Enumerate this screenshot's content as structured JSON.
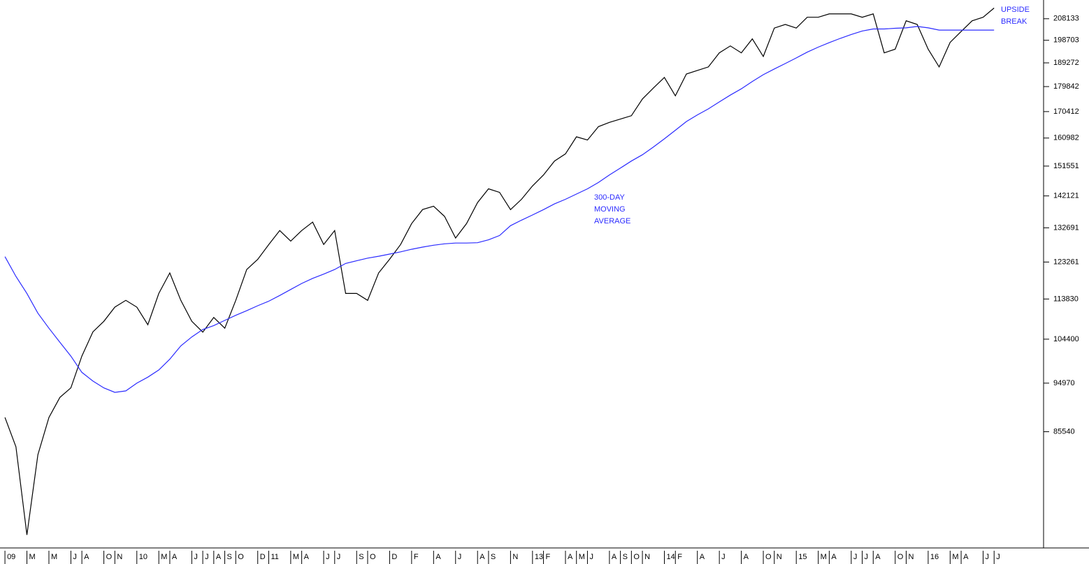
{
  "chart_data": {
    "type": "line",
    "log_scale": true,
    "x": [
      0,
      1,
      2,
      3,
      4,
      5,
      6,
      7,
      8,
      9,
      10,
      11,
      12,
      13,
      14,
      15,
      16,
      17,
      18,
      19,
      20,
      21,
      22,
      23,
      24,
      25,
      26,
      27,
      28,
      29,
      30,
      31,
      32,
      33,
      34,
      35,
      36,
      37,
      38,
      39,
      40,
      41,
      42,
      43,
      44,
      45,
      46,
      47,
      48,
      49,
      50,
      51,
      52,
      53,
      54,
      55,
      56,
      57,
      58,
      59,
      60,
      61,
      62,
      63,
      64,
      65,
      66,
      67,
      68,
      69,
      70,
      71,
      72,
      73,
      74,
      75,
      76,
      77,
      78,
      79,
      80,
      81,
      82,
      83,
      84,
      85,
      86,
      87,
      88,
      89,
      90
    ],
    "series": [
      {
        "color": "#000000",
        "values": [
          88200,
          82800,
          68500,
          81400,
          88200,
          92100,
          94000,
          100660,
          106050,
          108500,
          111850,
          113500,
          111850,
          107700,
          115200,
          120400,
          113500,
          108500,
          106000,
          109400,
          106900,
          113500,
          121300,
          123960,
          127976,
          131900,
          128950,
          131900,
          134330,
          128000,
          131900,
          115200,
          115200,
          113500,
          120400,
          124000,
          128000,
          133900,
          138020,
          139000,
          136000,
          129800,
          133900,
          140100,
          144310,
          143200,
          138000,
          141100,
          145200,
          148700,
          153200,
          155600,
          161400,
          160300,
          165000,
          166500,
          167700,
          168900,
          175100,
          179300,
          183440,
          176300,
          184800,
          186200,
          187600,
          193400,
          196300,
          193400,
          199300,
          191900,
          204000,
          205600,
          204000,
          208800,
          208800,
          210300,
          210300,
          210300,
          208800,
          210300,
          193400,
          194900,
          207200,
          205600,
          194900,
          187600,
          197800,
          202500,
          207200,
          208800,
          213000
        ]
      },
      {
        "color": "#2b2bff",
        "values": [
          124700,
          119500,
          115200,
          110400,
          106900,
          103700,
          100660,
          97200,
          95400,
          94000,
          93100,
          93400,
          94970,
          96200,
          97700,
          100000,
          102900,
          104900,
          106600,
          107500,
          108700,
          109900,
          111000,
          112200,
          113300,
          114700,
          116200,
          117700,
          119000,
          120100,
          121300,
          122900,
          123600,
          124300,
          124800,
          125400,
          126000,
          126700,
          127300,
          127800,
          128200,
          128400,
          128400,
          128500,
          129300,
          130500,
          133300,
          134900,
          136400,
          138000,
          139700,
          141100,
          142700,
          144300,
          146300,
          148700,
          150900,
          153200,
          155300,
          157900,
          160700,
          163700,
          166800,
          169200,
          171400,
          174000,
          176600,
          179000,
          181800,
          184500,
          186800,
          189000,
          191300,
          193700,
          195800,
          197700,
          199500,
          201200,
          202700,
          203600,
          203600,
          203900,
          204100,
          204700,
          204100,
          203100,
          203100,
          203100,
          203100,
          203100,
          203100
        ]
      }
    ],
    "xlim": [
      -0.45,
      94.5
    ],
    "ylim": [
      66600,
      216700
    ],
    "yticks": [
      85540,
      94970,
      104400,
      113830,
      123261,
      132691,
      142121,
      151551,
      160982,
      170412,
      179842,
      189272,
      198703,
      208133
    ],
    "xticks": [
      {
        "value": 0,
        "label": "09"
      },
      {
        "value": 2,
        "label": "M"
      },
      {
        "value": 4,
        "label": "M"
      },
      {
        "value": 6,
        "label": "J"
      },
      {
        "value": 7,
        "label": "A"
      },
      {
        "value": 9,
        "label": "O"
      },
      {
        "value": 10,
        "label": "N"
      },
      {
        "value": 12,
        "label": "10"
      },
      {
        "value": 14,
        "label": "M"
      },
      {
        "value": 15,
        "label": "A"
      },
      {
        "value": 17,
        "label": "J"
      },
      {
        "value": 18,
        "label": "J"
      },
      {
        "value": 19,
        "label": "A"
      },
      {
        "value": 20,
        "label": "S"
      },
      {
        "value": 21,
        "label": "O"
      },
      {
        "value": 23,
        "label": "D"
      },
      {
        "value": 24,
        "label": "11"
      },
      {
        "value": 26,
        "label": "M"
      },
      {
        "value": 27,
        "label": "A"
      },
      {
        "value": 29,
        "label": "J"
      },
      {
        "value": 30,
        "label": "J"
      },
      {
        "value": 32,
        "label": "S"
      },
      {
        "value": 33,
        "label": "O"
      },
      {
        "value": 35,
        "label": "D"
      },
      {
        "value": 37,
        "label": "F"
      },
      {
        "value": 39,
        "label": "A"
      },
      {
        "value": 41,
        "label": "J"
      },
      {
        "value": 43,
        "label": "A"
      },
      {
        "value": 44,
        "label": "S"
      },
      {
        "value": 46,
        "label": "N"
      },
      {
        "value": 48,
        "label": "13"
      },
      {
        "value": 49,
        "label": "F"
      },
      {
        "value": 51,
        "label": "A"
      },
      {
        "value": 52,
        "label": "M"
      },
      {
        "value": 53,
        "label": "J"
      },
      {
        "value": 55,
        "label": "A"
      },
      {
        "value": 56,
        "label": "S"
      },
      {
        "value": 57,
        "label": "O"
      },
      {
        "value": 58,
        "label": "N"
      },
      {
        "value": 60,
        "label": "14"
      },
      {
        "value": 61,
        "label": "F"
      },
      {
        "value": 63,
        "label": "A"
      },
      {
        "value": 65,
        "label": "J"
      },
      {
        "value": 67,
        "label": "A"
      },
      {
        "value": 69,
        "label": "O"
      },
      {
        "value": 70,
        "label": "N"
      },
      {
        "value": 72,
        "label": "15"
      },
      {
        "value": 74,
        "label": "M"
      },
      {
        "value": 75,
        "label": "A"
      },
      {
        "value": 77,
        "label": "J"
      },
      {
        "value": 78,
        "label": "J"
      },
      {
        "value": 79,
        "label": "A"
      },
      {
        "value": 81,
        "label": "O"
      },
      {
        "value": 82,
        "label": "N"
      },
      {
        "value": 84,
        "label": "16"
      },
      {
        "value": 86,
        "label": "M"
      },
      {
        "value": 87,
        "label": "A"
      },
      {
        "value": 89,
        "label": "J"
      },
      {
        "value": 90,
        "label": "J"
      }
    ],
    "annotations": [
      {
        "color": "#2b2bff",
        "lines": [
          "300-DAY",
          "MOVING",
          "AVERAGE"
        ]
      },
      {
        "color": "#2b2bff",
        "lines": [
          "UPSIDE",
          "BREAK"
        ]
      }
    ]
  }
}
